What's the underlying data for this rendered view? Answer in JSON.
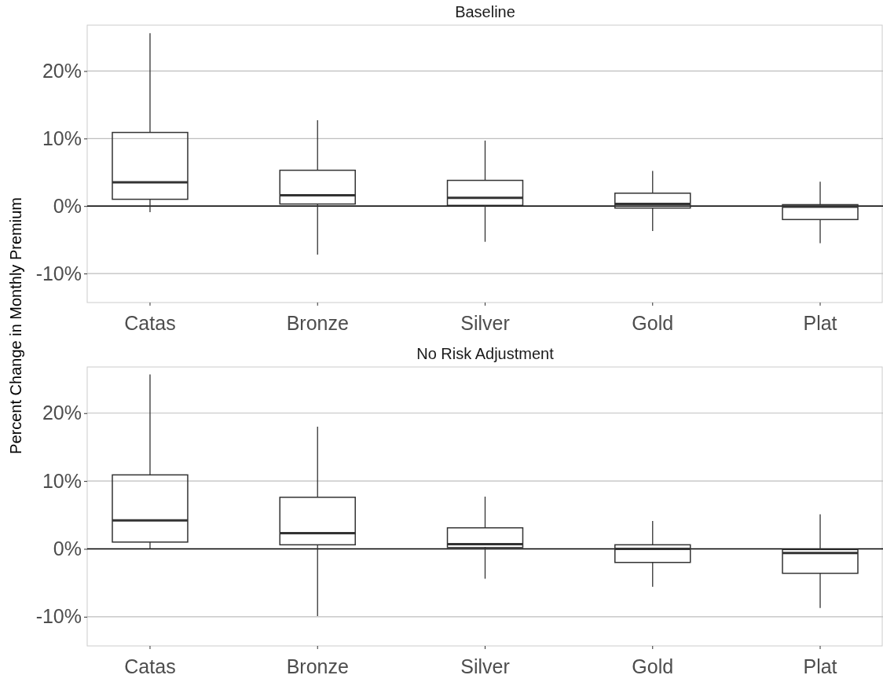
{
  "chart_data": [
    {
      "type": "box",
      "title": "Baseline",
      "ylabel": "Percent Change in Monthly Premium",
      "categories": [
        "Catas",
        "Bronze",
        "Silver",
        "Gold",
        "Plat"
      ],
      "boxes": [
        {
          "low": -0.9,
          "q1": 1.0,
          "median": 3.5,
          "q3": 10.9,
          "high": 25.6
        },
        {
          "low": -7.2,
          "q1": 0.3,
          "median": 1.6,
          "q3": 5.3,
          "high": 12.7
        },
        {
          "low": -5.3,
          "q1": 0.1,
          "median": 1.2,
          "q3": 3.8,
          "high": 9.7
        },
        {
          "low": -3.7,
          "q1": -0.3,
          "median": 0.3,
          "q3": 1.9,
          "high": 5.2
        },
        {
          "low": -5.5,
          "q1": -2.0,
          "median": -0.1,
          "q3": 0.2,
          "high": 3.6
        }
      ],
      "ylim": [
        -14.3,
        26.8
      ],
      "yticks": [
        {
          "value": -10,
          "label": "-10%"
        },
        {
          "value": 0,
          "label": "0%"
        },
        {
          "value": 10,
          "label": "10%"
        },
        {
          "value": 20,
          "label": "20%"
        }
      ],
      "grid": "y",
      "ref_lines": [
        {
          "axis": "y",
          "value": 0,
          "color": "#000000"
        }
      ]
    },
    {
      "type": "box",
      "title": "No Risk Adjustment",
      "categories": [
        "Catas",
        "Bronze",
        "Silver",
        "Gold",
        "Plat"
      ],
      "boxes": [
        {
          "low": 0,
          "q1": 1.0,
          "median": 4.2,
          "q3": 10.9,
          "high": 25.7
        },
        {
          "low": -9.9,
          "q1": 0.6,
          "median": 2.3,
          "q3": 7.6,
          "high": 18.0
        },
        {
          "low": -4.4,
          "q1": 0.2,
          "median": 0.7,
          "q3": 3.1,
          "high": 7.7
        },
        {
          "low": -5.6,
          "q1": -2.0,
          "median": 0,
          "q3": 0.6,
          "high": 4.1
        },
        {
          "low": -8.7,
          "q1": -3.6,
          "median": -0.6,
          "q3": -0.1,
          "high": 5.1
        }
      ],
      "ylim": [
        -14.3,
        26.8
      ],
      "yticks": [
        {
          "value": -10,
          "label": "-10%"
        },
        {
          "value": 0,
          "label": "0%"
        },
        {
          "value": 10,
          "label": "10%"
        },
        {
          "value": 20,
          "label": "20%"
        }
      ],
      "grid": "y",
      "ref_lines": [
        {
          "axis": "y",
          "value": 0,
          "color": "#000000"
        }
      ]
    }
  ]
}
